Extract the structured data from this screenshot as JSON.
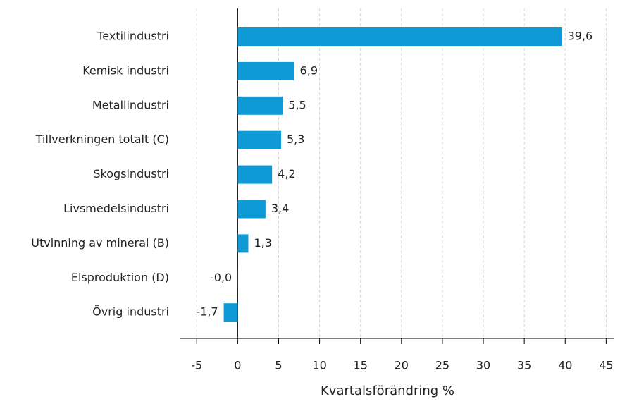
{
  "chart_data": {
    "type": "bar",
    "orientation": "horizontal",
    "categories": [
      "Textilindustri",
      "Kemisk industri",
      "Metallindustri",
      "Tillverkningen totalt (C)",
      "Skogsindustri",
      "Livsmedelsindustri",
      "Utvinning av mineral (B)",
      "Elsproduktion (D)",
      "Övrig industri"
    ],
    "values": [
      39.6,
      6.9,
      5.5,
      5.3,
      4.2,
      3.4,
      1.3,
      -0.01,
      -1.7
    ],
    "value_labels": [
      "39,6",
      "6,9",
      "5,5",
      "5,3",
      "4,2",
      "3,4",
      "1,3",
      "-0,0",
      "-1,7"
    ],
    "color": "#0f9ad6",
    "xlabel": "Kvartalsförändring %",
    "xlim": [
      -7,
      46
    ],
    "xticks": [
      -5,
      0,
      5,
      10,
      15,
      20,
      25,
      30,
      35,
      40,
      45
    ],
    "grid": true
  }
}
